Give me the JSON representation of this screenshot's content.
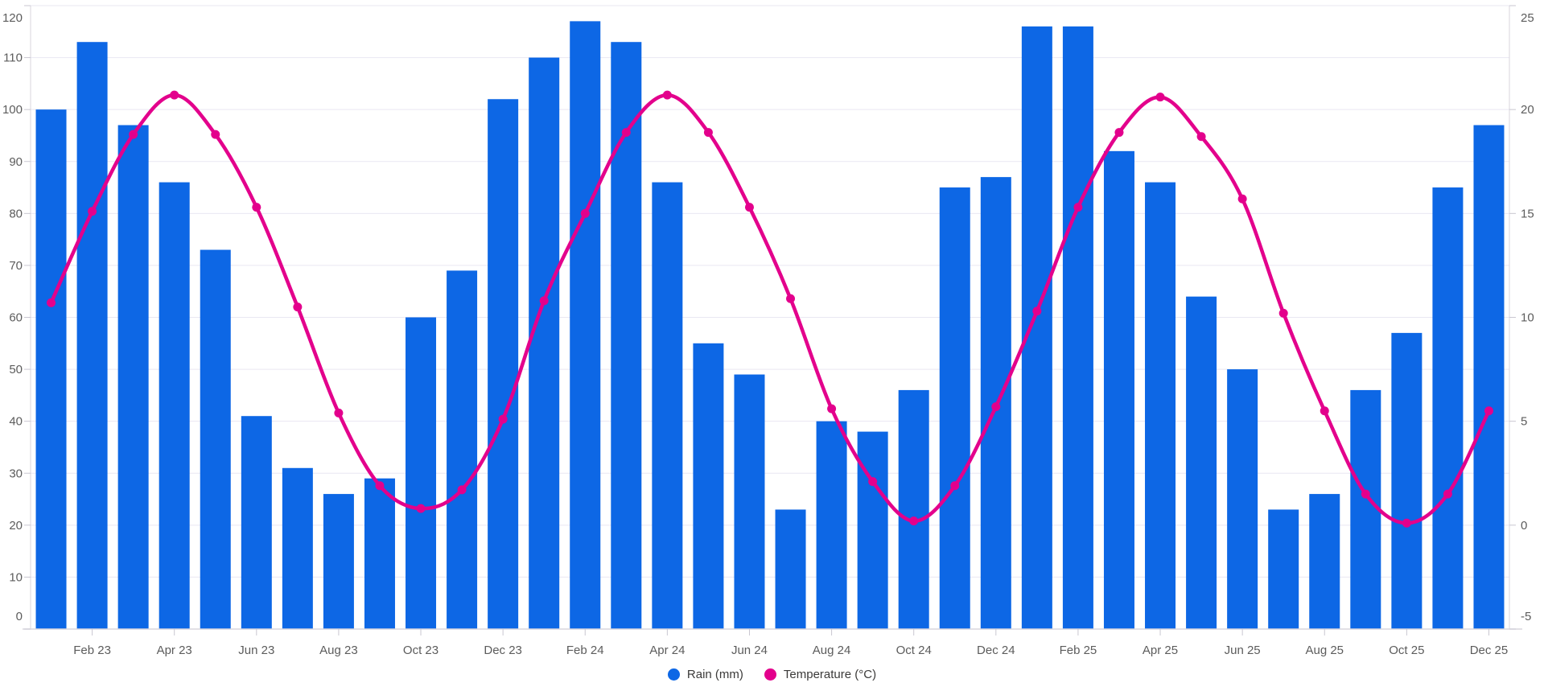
{
  "chart_data": {
    "type": "combo-bar-line",
    "title": "",
    "categories": [
      "Jan 23",
      "Feb 23",
      "Mar 23",
      "Apr 23",
      "May 23",
      "Jun 23",
      "Jul 23",
      "Aug 23",
      "Sep 23",
      "Oct 23",
      "Nov 23",
      "Dec 23",
      "Jan 24",
      "Feb 24",
      "Mar 24",
      "Apr 24",
      "May 24",
      "Jun 24",
      "Jul 24",
      "Aug 24",
      "Sep 24",
      "Oct 24",
      "Nov 24",
      "Dec 24",
      "Jan 25",
      "Feb 25",
      "Mar 25",
      "Apr 25",
      "May 25",
      "Jun 25",
      "Jul 25",
      "Aug 25",
      "Sep 25",
      "Oct 25",
      "Nov 25",
      "Dec 25"
    ],
    "x_tick_labels": [
      "Feb 23",
      "Apr 23",
      "Jun 23",
      "Aug 23",
      "Oct 23",
      "Dec 23",
      "Feb 24",
      "Apr 24",
      "Jun 24",
      "Aug 24",
      "Oct 24",
      "Dec 24",
      "Feb 25",
      "Apr 25",
      "Jun 25",
      "Aug 25",
      "Oct 25",
      "Dec 25"
    ],
    "series": [
      {
        "name": "Rain (mm)",
        "type": "bar",
        "axis": "left",
        "color": "#0d67e5",
        "values": [
          100,
          113,
          97,
          86,
          73,
          41,
          31,
          26,
          29,
          60,
          69,
          102,
          110,
          117,
          113,
          86,
          55,
          49,
          23,
          40,
          38,
          46,
          85,
          87,
          116,
          116,
          92,
          86,
          64,
          50,
          23,
          26,
          46,
          57,
          85,
          97
        ]
      },
      {
        "name": "Temperature (°C)",
        "type": "line",
        "axis": "right",
        "color": "#e3008c",
        "values": [
          10.7,
          15.1,
          18.8,
          20.7,
          18.8,
          15.3,
          10.5,
          5.4,
          1.9,
          0.8,
          1.7,
          5.1,
          10.8,
          15.0,
          18.9,
          20.7,
          18.9,
          15.3,
          10.9,
          5.6,
          2.1,
          0.2,
          1.9,
          5.7,
          10.3,
          15.3,
          18.9,
          20.6,
          18.7,
          15.7,
          10.2,
          5.5,
          1.5,
          0.1,
          1.5,
          5.5
        ]
      }
    ],
    "left_axis": {
      "min": 0,
      "max": 120,
      "step": 10,
      "tick_labels": [
        "0",
        "10",
        "20",
        "30",
        "40",
        "50",
        "60",
        "70",
        "80",
        "90",
        "100",
        "110",
        "120"
      ]
    },
    "right_axis": {
      "min": -5,
      "max": 25,
      "step": 5,
      "tick_labels": [
        "-5",
        "0",
        "5",
        "10",
        "15",
        "20",
        "25"
      ]
    },
    "grid": "horizontal",
    "legend_position": "bottom-center"
  },
  "legend": {
    "items": [
      {
        "label": "Rain (mm)",
        "color": "#0d67e5"
      },
      {
        "label": "Temperature (°C)",
        "color": "#e3008c"
      }
    ]
  },
  "colors": {
    "bar": "#0d67e5",
    "line": "#e3008c",
    "gridline": "#e9e7f2",
    "axis_line": "#d8d6de",
    "tick": "#c9c7d1",
    "axis_label": "#5c5c5c",
    "legend_text": "#3b3a39",
    "background": "#ffffff"
  }
}
